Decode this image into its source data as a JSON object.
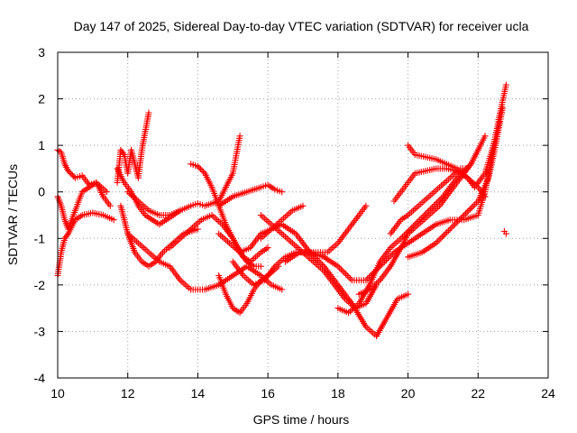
{
  "chart_data": {
    "type": "scatter",
    "title": "Day 147 of 2025, Sidereal Day-to-day VTEC variation (SDTVAR) for receiver ucla",
    "xlabel": "GPS time / hours",
    "ylabel": "SDTVAR / TECUs",
    "xlim": [
      10,
      24
    ],
    "ylim": [
      -4,
      3
    ],
    "xticks": [
      "10",
      "12",
      "14",
      "16",
      "18",
      "20",
      "22",
      "24"
    ],
    "yticks": [
      "-4",
      "-3",
      "-2",
      "-1",
      "0",
      "1",
      "2",
      "3"
    ],
    "grid": true,
    "legend": "none",
    "marker": "plus",
    "color": "#ff0000",
    "series": [
      {
        "x": [
          10.0,
          10.1,
          10.2,
          10.3,
          10.5,
          10.7,
          10.9,
          11.1,
          11.3,
          11.5
        ],
        "y": [
          0.9,
          0.85,
          0.6,
          0.45,
          0.3,
          0.35,
          0.15,
          0.2,
          -0.1,
          -0.3
        ]
      },
      {
        "x": [
          10.0,
          10.1,
          10.2,
          10.3,
          10.5,
          10.7,
          11.0,
          11.3,
          11.6
        ],
        "y": [
          -1.8,
          -1.3,
          -1.0,
          -0.9,
          -0.6,
          -0.5,
          -0.45,
          -0.5,
          -0.6
        ]
      },
      {
        "x": [
          10.0,
          10.1,
          10.2,
          10.3,
          10.5,
          10.7,
          10.9,
          11.1,
          11.4
        ],
        "y": [
          -0.1,
          -0.3,
          -0.6,
          -0.8,
          -0.4,
          0.0,
          0.1,
          0.2,
          0.0
        ]
      },
      {
        "x": [
          11.7,
          11.8,
          11.9,
          12.0,
          12.1,
          12.2,
          12.3,
          12.4,
          12.5,
          12.6
        ],
        "y": [
          0.2,
          0.9,
          0.8,
          0.4,
          0.9,
          0.6,
          0.3,
          0.9,
          1.3,
          1.7
        ]
      },
      {
        "x": [
          11.7,
          11.9,
          12.1,
          12.3,
          12.5,
          12.7,
          12.9,
          13.1,
          13.3,
          13.5
        ],
        "y": [
          0.5,
          0.2,
          0.0,
          -0.3,
          -0.5,
          -0.6,
          -0.7,
          -0.6,
          -0.5,
          -0.4
        ]
      },
      {
        "x": [
          11.8,
          11.9,
          12.0,
          12.1,
          12.2,
          12.4,
          12.6,
          12.8,
          13.0,
          13.3,
          13.6,
          14.0
        ],
        "y": [
          -0.3,
          -0.6,
          -0.9,
          -1.1,
          -1.3,
          -1.5,
          -1.6,
          -1.5,
          -1.3,
          -1.1,
          -0.9,
          -0.8
        ]
      },
      {
        "x": [
          12.0,
          12.3,
          12.6,
          12.9,
          13.2,
          13.5,
          13.8,
          14.0,
          14.2,
          14.6,
          15.0,
          15.2
        ],
        "y": [
          0.0,
          -0.2,
          -0.4,
          -0.5,
          -0.5,
          -0.4,
          -0.3,
          -0.25,
          -0.3,
          -0.2,
          0.4,
          1.2
        ]
      },
      {
        "x": [
          12.0,
          12.3,
          12.6,
          12.9,
          13.2,
          13.5,
          13.8,
          14.2,
          14.6,
          15.0,
          15.4,
          15.8,
          16.1,
          16.4
        ],
        "y": [
          -0.9,
          -1.1,
          -1.3,
          -1.5,
          -1.6,
          -1.9,
          -2.1,
          -2.1,
          -2.0,
          -1.8,
          -1.6,
          -1.8,
          -2.0,
          -2.1
        ]
      },
      {
        "x": [
          13.2,
          13.5,
          13.8,
          14.1,
          14.4,
          14.7,
          15.0,
          15.3,
          15.5,
          15.8,
          16.0
        ],
        "y": [
          -1.2,
          -1.0,
          -0.8,
          -0.6,
          -0.5,
          -0.7,
          -1.0,
          -1.4,
          -1.5,
          -1.3,
          -1.2
        ]
      },
      {
        "x": [
          13.8,
          14.0,
          14.2,
          14.4,
          14.6,
          14.8,
          15.0,
          15.2,
          15.4,
          15.6,
          15.8
        ],
        "y": [
          0.6,
          0.55,
          0.4,
          0.1,
          -0.3,
          -0.7,
          -1.0,
          -1.3,
          -1.5,
          -1.6,
          -1.6
        ]
      },
      {
        "x": [
          14.6,
          14.8,
          15.0,
          15.2,
          15.4,
          15.6,
          15.8,
          16.0,
          16.3
        ],
        "y": [
          -1.8,
          -2.2,
          -2.5,
          -2.6,
          -2.4,
          -2.1,
          -1.9,
          -1.8,
          -1.6
        ]
      },
      {
        "x": [
          14.6,
          14.9,
          15.2,
          15.5,
          15.8,
          16.1,
          16.4,
          16.8,
          17.2,
          17.6,
          18.0,
          18.4,
          18.8,
          19.1,
          19.4,
          19.7,
          20.0
        ],
        "y": [
          -0.9,
          -1.1,
          -1.3,
          -1.2,
          -0.9,
          -0.8,
          -0.7,
          -0.9,
          -1.3,
          -1.6,
          -2.0,
          -2.4,
          -2.9,
          -3.1,
          -2.7,
          -2.3,
          -2.2
        ]
      },
      {
        "x": [
          14.6,
          15.0,
          15.4,
          15.8,
          16.0,
          16.2,
          16.4
        ],
        "y": [
          -0.3,
          -0.1,
          0.0,
          0.1,
          0.15,
          0.05,
          0.0
        ]
      },
      {
        "x": [
          15.0,
          15.3,
          15.6,
          15.9,
          16.2,
          16.5,
          16.8,
          17.2,
          17.6,
          18.0,
          18.4,
          18.8,
          19.2,
          19.6,
          20.0,
          20.4,
          20.8,
          21.2,
          21.6,
          22.0,
          22.2,
          22.4,
          22.6,
          22.8
        ],
        "y": [
          -1.5,
          -1.8,
          -2.0,
          -1.9,
          -1.6,
          -1.4,
          -1.3,
          -1.3,
          -1.4,
          -1.6,
          -1.9,
          -1.9,
          -1.6,
          -1.3,
          -1.1,
          -0.9,
          -0.7,
          -0.6,
          -0.6,
          -0.5,
          0.0,
          0.8,
          1.6,
          2.3
        ]
      },
      {
        "x": [
          15.8,
          16.1,
          16.4,
          16.7,
          17.0,
          17.3,
          17.6,
          17.9,
          18.2,
          18.5,
          18.8,
          19.1
        ],
        "y": [
          -0.5,
          -0.7,
          -0.9,
          -1.1,
          -1.3,
          -1.5,
          -1.7,
          -2.0,
          -2.3,
          -2.5,
          -2.4,
          -2.0
        ]
      },
      {
        "x": [
          15.8,
          16.1,
          16.4,
          16.7,
          17.0
        ],
        "y": [
          -1.0,
          -0.8,
          -0.6,
          -0.4,
          -0.3
        ]
      },
      {
        "x": [
          16.5,
          16.9,
          17.3,
          17.7,
          18.0,
          18.3,
          18.6,
          18.8
        ],
        "y": [
          -1.5,
          -1.3,
          -1.3,
          -1.3,
          -1.1,
          -0.8,
          -0.5,
          -0.3
        ]
      },
      {
        "x": [
          18.0,
          18.3,
          18.6,
          18.9,
          19.2,
          19.5,
          19.8,
          20.2,
          20.6,
          21.0,
          21.4,
          21.8,
          22.2
        ],
        "y": [
          -2.5,
          -2.6,
          -2.4,
          -2.0,
          -1.5,
          -1.2,
          -1.0,
          -0.7,
          -0.4,
          -0.1,
          0.3,
          0.6,
          1.2
        ]
      },
      {
        "x": [
          18.6,
          18.9,
          19.2,
          19.5,
          19.8,
          20.0,
          20.3,
          20.6,
          20.9,
          21.2,
          21.5,
          21.8,
          22.0
        ],
        "y": [
          -2.2,
          -2.1,
          -1.9,
          -1.6,
          -1.2,
          -0.9,
          -0.7,
          -0.5,
          -0.3,
          0.0,
          0.3,
          0.6,
          0.9
        ]
      },
      {
        "x": [
          19.5,
          19.8,
          20.0,
          20.3,
          20.6,
          20.9,
          21.2,
          21.5,
          21.7
        ],
        "y": [
          -0.9,
          -0.6,
          -0.5,
          -0.3,
          -0.1,
          0.1,
          0.3,
          0.5,
          0.5
        ]
      },
      {
        "x": [
          19.6,
          19.8,
          20.0,
          20.2,
          20.5,
          20.8,
          21.1,
          21.4,
          21.7,
          22.0,
          22.2
        ],
        "y": [
          -0.2,
          0.0,
          0.2,
          0.4,
          0.45,
          0.5,
          0.5,
          0.45,
          0.3,
          0.1,
          -0.1
        ]
      },
      {
        "x": [
          20.0,
          20.2,
          20.5,
          20.8,
          21.1,
          21.4,
          21.7,
          21.9,
          22.2,
          22.4,
          22.6
        ],
        "y": [
          1.0,
          0.8,
          0.75,
          0.7,
          0.6,
          0.5,
          0.3,
          0.1,
          0.4,
          0.9,
          1.5
        ]
      },
      {
        "x": [
          20.0,
          20.4,
          20.8,
          21.2,
          21.6,
          22.0,
          22.3,
          22.5,
          22.7
        ],
        "y": [
          -1.4,
          -1.3,
          -1.1,
          -0.8,
          -0.5,
          -0.2,
          0.3,
          1.0,
          1.8
        ]
      },
      {
        "x": [
          22.75,
          22.8
        ],
        "y": [
          -0.85,
          -0.9
        ]
      }
    ]
  }
}
